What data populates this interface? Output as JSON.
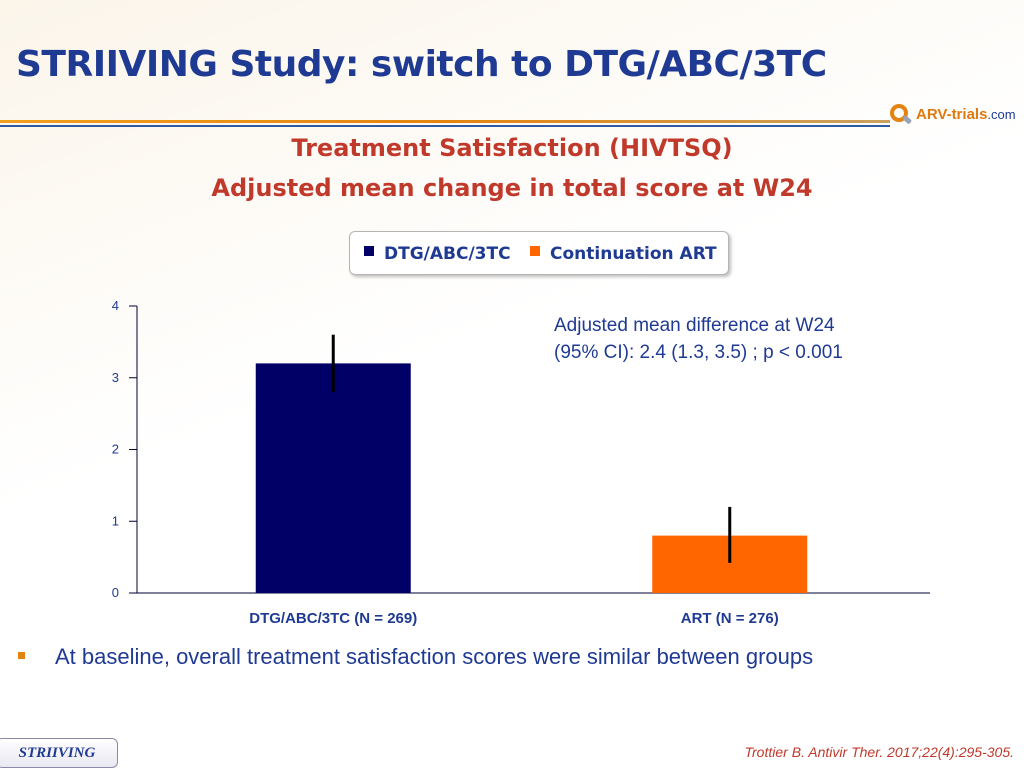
{
  "slide": {
    "title": "STRIIVING Study: switch to DTG/ABC/3TC",
    "subtitle_line1": "Treatment Satisfaction (HIVTSQ)",
    "subtitle_line2": "Adjusted mean change in total score at W24",
    "logo_text": "ARV-trials",
    "logo_domain": ".com",
    "annotation_line1": "Adjusted mean difference at W24",
    "annotation_line2": "(95% CI): 2.4 (1.3, 3.5) ; p < 0.001",
    "bullet": "At baseline, overall treatment satisfaction scores were similar between groups",
    "footer_tag": "STRIIVING",
    "citation": "Trottier B. Antivir Ther. 2017;22(4):295-305."
  },
  "legend": [
    {
      "label": "DTG/ABC/3TC",
      "color": "#000066"
    },
    {
      "label": "Continuation ART",
      "color": "#ff6600"
    }
  ],
  "colors": {
    "title": "#1f3a93",
    "subtitle": "#c0392b",
    "accent_orange": "#e38410",
    "error_bar": "#000000"
  },
  "chart_data": {
    "type": "bar",
    "title": "Adjusted mean change in total score at W24",
    "xlabel": "",
    "ylabel": "",
    "ylim": [
      0,
      4
    ],
    "yticks": [
      0,
      1,
      2,
      3,
      4
    ],
    "grid": false,
    "categories": [
      "DTG/ABC/3TC (N = 269)",
      "ART (N = 276)"
    ],
    "values": [
      3.2,
      0.8
    ],
    "error_low": [
      2.8,
      0.42
    ],
    "error_high": [
      3.6,
      1.2
    ],
    "bar_colors": [
      "#000066",
      "#ff6600"
    ]
  }
}
